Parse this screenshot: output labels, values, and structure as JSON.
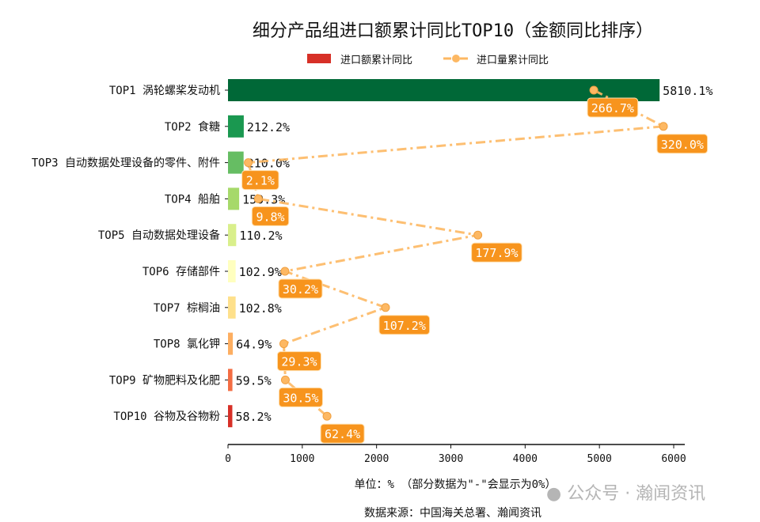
{
  "chart_data": {
    "type": "bar",
    "orientation": "horizontal",
    "title": "细分产品组进口额累计同比TOP10（金额同比排序）",
    "categories": [
      "TOP1 涡轮螺桨发动机",
      "TOP2 食糖",
      "TOP3 自动数据处理设备的零件、附件",
      "TOP4 船舶",
      "TOP5 自动数据处理设备",
      "TOP6 存储部件",
      "TOP7 棕榈油",
      "TOP8 氯化钾",
      "TOP9 矿物肥料及化肥",
      "TOP10 谷物及谷物粉"
    ],
    "series": [
      {
        "name": "进口额累计同比",
        "type": "bar",
        "values": [
          5810.1,
          212.2,
          210.0,
          150.3,
          110.2,
          102.9,
          102.8,
          64.9,
          59.5,
          58.2
        ],
        "labels": [
          "5810.1%",
          "212.2%",
          "210.0%",
          "150.3%",
          "110.2%",
          "102.9%",
          "102.8%",
          "64.9%",
          "59.5%",
          "58.2%"
        ],
        "colors": [
          "#006837",
          "#1a9850",
          "#66bd63",
          "#a6d96a",
          "#d9ef8b",
          "#ffffbf",
          "#fee08b",
          "#fdae61",
          "#f46d43",
          "#d73027"
        ]
      },
      {
        "name": "进口量累计同比",
        "type": "line",
        "values": [
          266.7,
          320.0,
          2.1,
          9.8,
          177.9,
          30.2,
          107.2,
          29.3,
          30.5,
          62.4
        ],
        "labels": [
          "266.7%",
          "320.0%",
          "2.1%",
          "9.8%",
          "177.9%",
          "30.2%",
          "107.2%",
          "29.3%",
          "30.5%",
          "62.4%"
        ],
        "color": "#fdb863",
        "label_bg": "#f7941d"
      }
    ],
    "xlim": [
      0,
      6100
    ],
    "xticks": [
      "0",
      "1000",
      "2000",
      "3000",
      "4000",
      "5000",
      "6000"
    ],
    "xlabel": "单位：%  （部分数据为\"-\"会显示为0%）",
    "source": "数据来源：中国海关总署、瀚闻资讯",
    "legend": "top-center",
    "grid": false
  },
  "watermark": "公众号 · 瀚闻资讯"
}
